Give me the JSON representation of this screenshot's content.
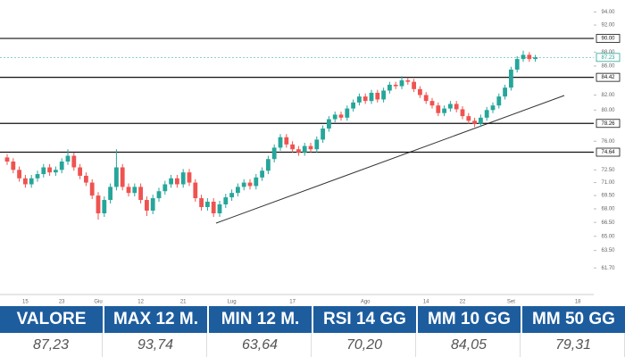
{
  "chart_data": {
    "type": "candlestick",
    "log_scale": true,
    "up_color": "#26a69a",
    "down_color": "#ef5350",
    "ylim": [
      59.06,
      95.87
    ],
    "yticks": [
      {
        "value": 94,
        "label": "94.00"
      },
      {
        "value": 92,
        "label": "92.00"
      },
      {
        "value": 88,
        "label": "88.00"
      },
      {
        "value": 86,
        "label": "86.00"
      },
      {
        "value": 82,
        "label": "82.00"
      },
      {
        "value": 80,
        "label": "80.00"
      },
      {
        "value": 76,
        "label": "76.00"
      },
      {
        "value": 72.5,
        "label": "72.50"
      },
      {
        "value": 71,
        "label": "71.00"
      },
      {
        "value": 69.5,
        "label": "69.50"
      },
      {
        "value": 68,
        "label": "68.00"
      },
      {
        "value": 66.5,
        "label": "66.50"
      },
      {
        "value": 65,
        "label": "65.00"
      },
      {
        "value": 63.5,
        "label": "63.50"
      },
      {
        "value": 61.7,
        "label": "61.70"
      }
    ],
    "levels": [
      {
        "value": 90,
        "label": "90.00"
      },
      84.42,
      78.26,
      74.64
    ],
    "last_price": 87.23,
    "categories": [
      null,
      null,
      null,
      "15",
      null,
      null,
      null,
      null,
      null,
      "23",
      null,
      null,
      null,
      null,
      null,
      "Giu",
      null,
      null,
      null,
      null,
      null,
      null,
      "12",
      null,
      null,
      null,
      null,
      null,
      null,
      "21",
      null,
      null,
      null,
      null,
      null,
      null,
      null,
      "Lug",
      null,
      null,
      null,
      null,
      null,
      null,
      null,
      null,
      null,
      "17",
      null,
      null,
      null,
      null,
      null,
      null,
      null,
      null,
      null,
      null,
      null,
      "Ago",
      null,
      null,
      null,
      null,
      null,
      null,
      null,
      null,
      null,
      "14",
      null,
      null,
      null,
      null,
      null,
      "22",
      null,
      null,
      null,
      null,
      null,
      null,
      null,
      "Set",
      null,
      null,
      null,
      null,
      null,
      null,
      null,
      null,
      null,
      null,
      "18"
    ],
    "open": [
      74.0,
      73.5,
      72.5,
      71.5,
      70.8,
      71.5,
      72.0,
      72.8,
      72.2,
      72.5,
      73.5,
      74.2,
      72.8,
      71.8,
      71.0,
      69.5,
      67.5,
      69.0,
      70.5,
      72.8,
      70.5,
      69.8,
      70.5,
      69.0,
      67.8,
      69.2,
      70.0,
      70.8,
      71.5,
      70.8,
      72.2,
      71.0,
      69.2,
      68.2,
      68.8,
      67.5,
      68.5,
      69.3,
      69.8,
      70.5,
      71.0,
      70.6,
      71.6,
      72.4,
      73.8,
      75.2,
      76.5,
      75.6,
      75.0,
      74.6,
      75.4,
      75.0,
      76.2,
      77.6,
      78.8,
      79.4,
      79.0,
      80.2,
      81.0,
      81.8,
      81.2,
      82.3,
      81.4,
      82.6,
      83.4,
      83.2,
      84.0,
      83.8,
      82.8,
      82.0,
      81.2,
      80.6,
      79.6,
      80.2,
      80.8,
      80.1,
      79.2,
      78.6,
      78.2,
      79.0,
      80.0,
      80.6,
      81.8,
      83.0,
      85.5,
      87.0,
      87.6,
      87.0,
      null,
      null,
      null,
      null,
      null,
      null,
      null
    ],
    "high": [
      74.4,
      73.9,
      72.9,
      71.9,
      71.9,
      72.4,
      73.2,
      73.2,
      72.9,
      73.9,
      75.0,
      74.6,
      73.2,
      72.2,
      71.4,
      69.9,
      69.4,
      70.9,
      75.0,
      73.2,
      70.9,
      70.9,
      70.9,
      69.4,
      69.6,
      70.4,
      71.2,
      71.9,
      71.9,
      72.6,
      72.6,
      71.4,
      69.6,
      69.2,
      69.2,
      68.9,
      69.7,
      70.2,
      70.9,
      71.4,
      71.4,
      72.0,
      72.8,
      74.2,
      75.6,
      76.9,
      76.9,
      76.0,
      75.4,
      75.8,
      75.8,
      76.6,
      78.0,
      79.2,
      79.8,
      79.8,
      80.6,
      81.4,
      82.2,
      82.2,
      82.7,
      82.7,
      83.0,
      83.8,
      83.8,
      84.6,
      84.4,
      84.2,
      83.2,
      82.4,
      81.6,
      81.0,
      80.6,
      81.2,
      81.2,
      80.5,
      79.6,
      79.0,
      79.4,
      80.4,
      81.0,
      82.2,
      83.4,
      85.9,
      87.4,
      88.2,
      88.0,
      87.6,
      null,
      null,
      null,
      null,
      null,
      null,
      null
    ],
    "low": [
      73.1,
      72.1,
      71.1,
      70.4,
      70.4,
      71.1,
      71.6,
      71.8,
      71.8,
      72.1,
      73.1,
      72.4,
      71.4,
      70.6,
      69.1,
      66.8,
      67.1,
      68.6,
      70.1,
      70.1,
      69.4,
      69.4,
      68.6,
      67.2,
      67.4,
      68.8,
      69.6,
      70.4,
      70.4,
      70.4,
      70.6,
      68.8,
      67.8,
      67.8,
      67.1,
      67.1,
      68.1,
      68.9,
      69.4,
      70.1,
      70.2,
      70.2,
      71.2,
      72.0,
      73.4,
      74.8,
      75.2,
      74.6,
      74.2,
      74.2,
      74.6,
      74.6,
      75.8,
      77.2,
      78.4,
      78.6,
      78.6,
      79.8,
      80.6,
      80.8,
      80.8,
      81.0,
      81.0,
      82.2,
      82.8,
      82.8,
      83.4,
      82.4,
      81.6,
      80.8,
      80.2,
      79.2,
      79.2,
      79.8,
      79.7,
      78.8,
      78.2,
      77.8,
      77.8,
      78.6,
      79.6,
      80.2,
      81.4,
      82.6,
      85.1,
      86.6,
      86.6,
      86.6,
      null,
      null,
      null,
      null,
      null,
      null,
      null
    ],
    "close": [
      73.5,
      72.5,
      71.5,
      70.8,
      71.5,
      72.0,
      72.8,
      72.2,
      72.5,
      73.5,
      74.2,
      72.8,
      71.8,
      71.0,
      69.5,
      67.5,
      69.0,
      70.5,
      72.8,
      70.5,
      69.8,
      70.5,
      69.0,
      67.8,
      69.2,
      70.0,
      70.8,
      71.5,
      70.8,
      72.2,
      71.0,
      69.2,
      68.2,
      68.8,
      67.5,
      68.5,
      69.3,
      69.8,
      70.5,
      71.0,
      70.6,
      71.6,
      72.4,
      73.8,
      75.2,
      76.5,
      75.6,
      75.0,
      74.6,
      75.4,
      75.0,
      76.2,
      77.6,
      78.8,
      79.4,
      79.0,
      80.2,
      81.0,
      81.8,
      81.2,
      82.3,
      81.4,
      82.6,
      83.4,
      83.2,
      84.0,
      83.8,
      82.8,
      82.0,
      81.2,
      80.6,
      79.6,
      80.2,
      80.8,
      80.1,
      79.2,
      78.6,
      78.2,
      79.0,
      80.0,
      80.6,
      81.8,
      83.0,
      85.5,
      87.0,
      87.6,
      87.0,
      87.23,
      null,
      null,
      null,
      null,
      null,
      null,
      null
    ]
  },
  "table": {
    "headers": [
      "VALORE",
      "MAX 12 M.",
      "MIN 12 M.",
      "RSI 14 GG",
      "MM 10 GG",
      "MM 50 GG"
    ],
    "values": [
      "87,23",
      "93,74",
      "63,64",
      "70,20",
      "84,05",
      "79,31"
    ]
  }
}
